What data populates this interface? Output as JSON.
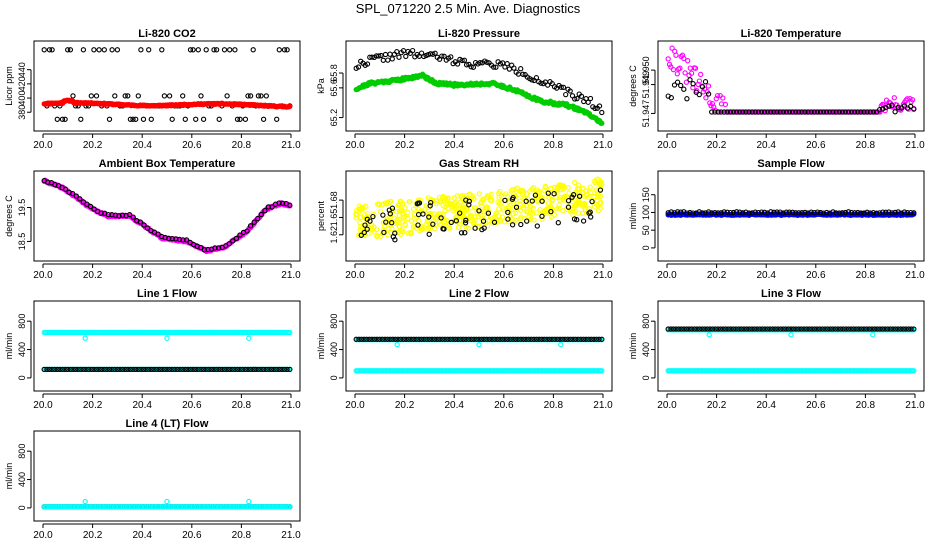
{
  "page": {
    "title": "SPL_071220  2.5 Min. Ave. Diagnostics"
  },
  "chart_data": [
    {
      "type": "scatter",
      "title": "Li-820 CO2",
      "ylabel": "Licor ppm",
      "xlim": [
        0,
        1
      ],
      "ylim": [
        362,
        472
      ],
      "xticks": [
        0,
        0.2,
        0.4,
        0.6,
        0.8,
        1
      ],
      "xticklabels": [
        "20.0",
        "20.2",
        "20.4",
        "20.6",
        "20.8",
        "21.0"
      ],
      "yticks": [
        380,
        400,
        420,
        440
      ],
      "yticklabels": [
        "380",
        "400",
        "420",
        "440"
      ],
      "series": [
        {
          "color": "#000000",
          "fill": false,
          "gen": "co2_black"
        },
        {
          "color": "#ff0000",
          "fill": true,
          "gen": "co2_red"
        }
      ]
    },
    {
      "type": "scatter",
      "title": "Li-820 Pressure",
      "ylabel": "kPa",
      "xlim": [
        0,
        1
      ],
      "ylim": [
        65.1,
        66.15
      ],
      "xticks": [
        0,
        0.2,
        0.4,
        0.6,
        0.8,
        1
      ],
      "xticklabels": [
        "20.0",
        "20.2",
        "20.4",
        "20.6",
        "20.8",
        "21.0"
      ],
      "yticks": [
        65.2,
        65.6,
        65.8
      ],
      "yticklabels": [
        "65.2",
        "65.6",
        "65.8"
      ],
      "series": [
        {
          "color": "#000000",
          "fill": false,
          "gen": "press_black"
        },
        {
          "color": "#00cc00",
          "fill": true,
          "gen": "press_green"
        }
      ]
    },
    {
      "type": "scatter",
      "title": "Li-820 Temperature",
      "ylabel": "degrees C",
      "xlim": [
        0,
        1
      ],
      "ylim": [
        51.9462,
        51.9516
      ],
      "xticks": [
        0,
        0.2,
        0.4,
        0.6,
        0.8,
        1
      ],
      "xticklabels": [
        "20.0",
        "20.2",
        "20.4",
        "20.6",
        "20.8",
        "21.0"
      ],
      "yticks": [
        51.947,
        51.949,
        51.95
      ],
      "yticklabels": [
        "51.947",
        "51.949",
        "51.950"
      ],
      "series": [
        {
          "color": "#ff00ff",
          "fill": false,
          "gen": "ltemp_mag"
        },
        {
          "color": "#000000",
          "fill": false,
          "gen": "ltemp_black"
        }
      ]
    },
    {
      "type": "scatter",
      "title": "Ambient Box Temperature",
      "ylabel": "degrees C",
      "xlim": [
        0,
        1
      ],
      "ylim": [
        18.1,
        20.4
      ],
      "xticks": [
        0,
        0.2,
        0.4,
        0.6,
        0.8,
        1
      ],
      "xticklabels": [
        "20.0",
        "20.2",
        "20.4",
        "20.6",
        "20.8",
        "21.0"
      ],
      "yticks": [
        18.5,
        19.5
      ],
      "yticklabels": [
        "18.5",
        "19.5"
      ],
      "series": [
        {
          "color": "#ff00ff",
          "fill": true,
          "gen": "amb_mag"
        },
        {
          "color": "#000000",
          "fill": false,
          "gen": "amb_black"
        }
      ]
    },
    {
      "type": "scatter",
      "title": "Gas Stream RH",
      "ylabel": "percent",
      "xlim": [
        0,
        1
      ],
      "ylim": [
        1.585,
        1.72
      ],
      "xticks": [
        0,
        0.2,
        0.4,
        0.6,
        0.8,
        1
      ],
      "xticklabels": [
        "20.0",
        "20.2",
        "20.4",
        "20.6",
        "20.8",
        "21.0"
      ],
      "yticks": [
        1.62,
        1.65,
        1.68
      ],
      "yticklabels": [
        "1.62",
        "1.65",
        "1.68"
      ],
      "series": [
        {
          "color": "#ffff00",
          "fill": false,
          "gen": "rh_yellow"
        },
        {
          "color": "#000000",
          "fill": false,
          "gen": "rh_black"
        }
      ]
    },
    {
      "type": "scatter",
      "title": "Sample Flow",
      "ylabel": "ml/min",
      "xlim": [
        0,
        1
      ],
      "ylim": [
        -20,
        200
      ],
      "xticks": [
        0,
        0.2,
        0.4,
        0.6,
        0.8,
        1
      ],
      "xticklabels": [
        "20.0",
        "20.2",
        "20.4",
        "20.6",
        "20.8",
        "21.0"
      ],
      "yticks": [
        0,
        50,
        100,
        150
      ],
      "yticklabels": [
        "0",
        "50",
        "100",
        "150"
      ],
      "series": [
        {
          "color": "#0000ff",
          "fill": true,
          "gen": "sf_blue"
        },
        {
          "color": "#000000",
          "fill": false,
          "gen": "sf_black"
        }
      ]
    },
    {
      "type": "scatter",
      "title": "Line 1 Flow",
      "ylabel": "ml/min",
      "xlim": [
        0,
        1
      ],
      "ylim": [
        -100,
        1000
      ],
      "xticks": [
        0,
        0.2,
        0.4,
        0.6,
        0.8,
        1
      ],
      "xticklabels": [
        "20.0",
        "20.2",
        "20.4",
        "20.6",
        "20.8",
        "21.0"
      ],
      "yticks": [
        0,
        400,
        800
      ],
      "yticklabels": [
        "0",
        "400",
        "800"
      ],
      "series": [
        {
          "color": "#00ffff",
          "fill": false,
          "gen": "l1_cyan"
        },
        {
          "color": "#000000",
          "fill": false,
          "gen": "l1_black"
        }
      ]
    },
    {
      "type": "scatter",
      "title": "Line 2 Flow",
      "ylabel": "ml/min",
      "xlim": [
        0,
        1
      ],
      "ylim": [
        -100,
        1000
      ],
      "xticks": [
        0,
        0.2,
        0.4,
        0.6,
        0.8,
        1
      ],
      "xticklabels": [
        "20.0",
        "20.2",
        "20.4",
        "20.6",
        "20.8",
        "21.0"
      ],
      "yticks": [
        0,
        400,
        800
      ],
      "yticklabels": [
        "0",
        "400",
        "800"
      ],
      "series": [
        {
          "color": "#00ffff",
          "fill": false,
          "gen": "l2_cyan"
        },
        {
          "color": "#000000",
          "fill": false,
          "gen": "l2_black"
        }
      ]
    },
    {
      "type": "scatter",
      "title": "Line 3 Flow",
      "ylabel": "ml/min",
      "xlim": [
        0,
        1
      ],
      "ylim": [
        -100,
        1000
      ],
      "xticks": [
        0,
        0.2,
        0.4,
        0.6,
        0.8,
        1
      ],
      "xticklabels": [
        "20.0",
        "20.2",
        "20.4",
        "20.6",
        "20.8",
        "21.0"
      ],
      "yticks": [
        0,
        400,
        800
      ],
      "yticklabels": [
        "0",
        "400",
        "800"
      ],
      "series": [
        {
          "color": "#00ffff",
          "fill": false,
          "gen": "l3_cyan"
        },
        {
          "color": "#000000",
          "fill": false,
          "gen": "l3_black"
        }
      ]
    },
    {
      "type": "scatter",
      "title": "Line 4 (LT) Flow",
      "ylabel": "ml/min",
      "xlim": [
        0,
        1
      ],
      "ylim": [
        -100,
        1000
      ],
      "xticks": [
        0,
        0.2,
        0.4,
        0.6,
        0.8,
        1
      ],
      "xticklabels": [
        "20.0",
        "20.2",
        "20.4",
        "20.6",
        "20.8",
        "21.0"
      ],
      "yticks": [
        0,
        400,
        800
      ],
      "yticklabels": [
        "0",
        "400",
        "800"
      ],
      "series": [
        {
          "color": "#000000",
          "fill": false,
          "gen": "l4_black"
        },
        {
          "color": "#00ffff",
          "fill": false,
          "gen": "l4_cyan"
        }
      ]
    }
  ]
}
